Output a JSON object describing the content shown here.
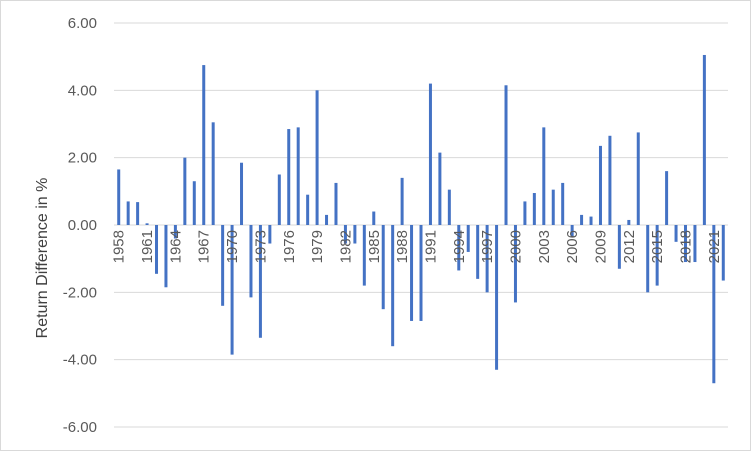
{
  "chart_data": {
    "type": "bar",
    "title": "",
    "xlabel": "",
    "ylabel": "Return Difference in %",
    "ylim": [
      -6,
      6
    ],
    "y_ticks": [
      "6.00",
      "4.00",
      "2.00",
      "0.00",
      "-2.00",
      "-4.00",
      "-6.00"
    ],
    "x_tick_labels": [
      "1958",
      "1961",
      "1964",
      "1967",
      "1970",
      "1973",
      "1976",
      "1979",
      "1982",
      "1985",
      "1988",
      "1991",
      "1994",
      "1997",
      "2000",
      "2003",
      "2006",
      "2009",
      "2012",
      "2015",
      "2018",
      "2021"
    ],
    "grid": "horizontal",
    "bar_color": "#4472c4",
    "categories": [
      "1958",
      "1959",
      "1960",
      "1961",
      "1962",
      "1963",
      "1964",
      "1965",
      "1966",
      "1967",
      "1968",
      "1969",
      "1970",
      "1971",
      "1972",
      "1973",
      "1974",
      "1975",
      "1976",
      "1977",
      "1978",
      "1979",
      "1980",
      "1981",
      "1982",
      "1983",
      "1984",
      "1985",
      "1986",
      "1987",
      "1988",
      "1989",
      "1990",
      "1991",
      "1992",
      "1993",
      "1994",
      "1995",
      "1996",
      "1997",
      "1998",
      "1999",
      "2000",
      "2001",
      "2002",
      "2003",
      "2004",
      "2005",
      "2006",
      "2007",
      "2008",
      "2009",
      "2010",
      "2011",
      "2012",
      "2013",
      "2014",
      "2015",
      "2016",
      "2017",
      "2018",
      "2019",
      "2020",
      "2021",
      "2022"
    ],
    "values": [
      1.65,
      0.7,
      0.68,
      0.05,
      -1.45,
      -1.85,
      -0.4,
      2.0,
      1.3,
      4.75,
      3.05,
      -2.4,
      -3.85,
      1.85,
      -2.15,
      -3.35,
      -0.55,
      1.5,
      2.85,
      2.9,
      0.9,
      4.0,
      0.3,
      1.25,
      -0.55,
      -0.55,
      -1.8,
      0.4,
      -2.5,
      -3.6,
      1.4,
      -2.85,
      -2.85,
      4.2,
      2.15,
      1.05,
      -1.35,
      -0.8,
      -1.6,
      -2.0,
      -4.3,
      4.15,
      -2.3,
      0.7,
      0.95,
      2.9,
      1.05,
      1.25,
      -0.35,
      0.3,
      0.25,
      2.35,
      2.65,
      -1.3,
      0.15,
      2.75,
      -2.0,
      -1.8,
      1.6,
      -0.5,
      -1.1,
      -1.1,
      5.05,
      -4.7,
      -1.65
    ]
  }
}
